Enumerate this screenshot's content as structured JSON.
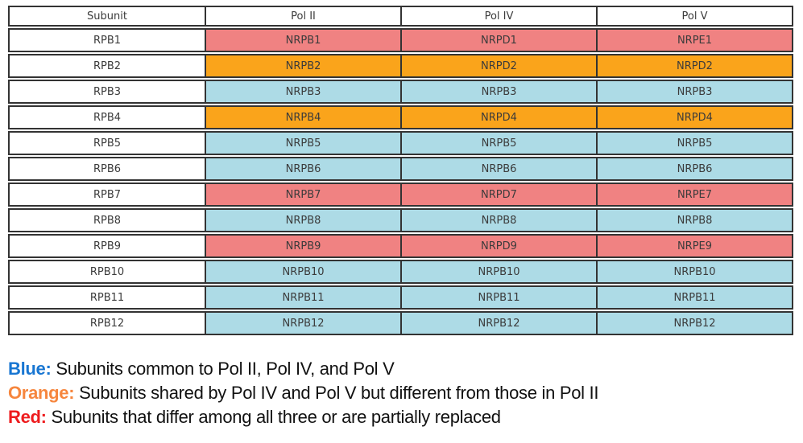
{
  "chart_data": {
    "type": "table",
    "title": "",
    "columns": [
      "Subunit",
      "Pol II",
      "Pol IV",
      "Pol V"
    ],
    "rows": [
      {
        "subunit": "RPB1",
        "pol2": "NRPB1",
        "pol4": "NRPD1",
        "pol5": "NRPE1",
        "color": "red"
      },
      {
        "subunit": "RPB2",
        "pol2": "NRPB2",
        "pol4": "NRPD2",
        "pol5": "NRPD2",
        "color": "orange"
      },
      {
        "subunit": "RPB3",
        "pol2": "NRPB3",
        "pol4": "NRPB3",
        "pol5": "NRPB3",
        "color": "blue"
      },
      {
        "subunit": "RPB4",
        "pol2": "NRPB4",
        "pol4": "NRPD4",
        "pol5": "NRPD4",
        "color": "orange"
      },
      {
        "subunit": "RPB5",
        "pol2": "NRPB5",
        "pol4": "NRPB5",
        "pol5": "NRPB5",
        "color": "blue"
      },
      {
        "subunit": "RPB6",
        "pol2": "NRPB6",
        "pol4": "NRPB6",
        "pol5": "NRPB6",
        "color": "blue"
      },
      {
        "subunit": "RPB7",
        "pol2": "NRPB7",
        "pol4": "NRPD7",
        "pol5": "NRPE7",
        "color": "red"
      },
      {
        "subunit": "RPB8",
        "pol2": "NRPB8",
        "pol4": "NRPB8",
        "pol5": "NRPB8",
        "color": "blue"
      },
      {
        "subunit": "RPB9",
        "pol2": "NRPB9",
        "pol4": "NRPD9",
        "pol5": "NRPE9",
        "color": "red"
      },
      {
        "subunit": "RPB10",
        "pol2": "NRPB10",
        "pol4": "NRPB10",
        "pol5": "NRPB10",
        "color": "blue"
      },
      {
        "subunit": "RPB11",
        "pol2": "NRPB11",
        "pol4": "NRPB11",
        "pol5": "NRPB11",
        "color": "blue"
      },
      {
        "subunit": "RPB12",
        "pol2": "NRPB12",
        "pol4": "NRPB12",
        "pol5": "NRPB12",
        "color": "blue"
      }
    ],
    "cell_colors": {
      "red": "#F08282",
      "orange": "#FAA41B",
      "blue": "#ADDBE6"
    },
    "legend": [
      {
        "label": "Blue:",
        "text": "Subunits common to Pol II, Pol IV, and Pol V",
        "label_color": "#1876D2"
      },
      {
        "label": "Orange:",
        "text": "Subunits shared by Pol IV and Pol V but different from those in Pol II",
        "label_color": "#F6863E"
      },
      {
        "label": "Red:",
        "text": "Subunits that differ among all three or are partially replaced",
        "label_color": "#EE1C1E"
      }
    ]
  }
}
